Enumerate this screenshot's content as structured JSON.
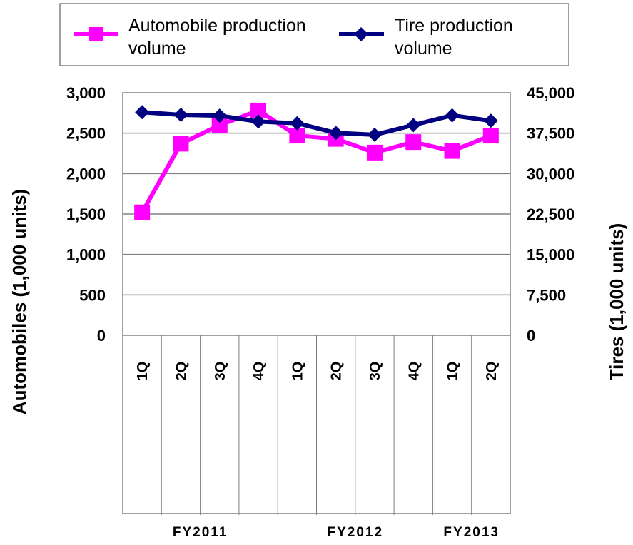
{
  "chart_data": {
    "type": "line",
    "categories": [
      "1Q",
      "2Q",
      "3Q",
      "4Q",
      "1Q",
      "2Q",
      "3Q",
      "4Q",
      "1Q",
      "2Q"
    ],
    "category_groups": [
      {
        "label": "FY2011",
        "count": 4
      },
      {
        "label": "FY2012",
        "count": 4
      },
      {
        "label": "FY2013",
        "count": 2
      }
    ],
    "series": [
      {
        "name": "Automobile production volume",
        "axis": "left",
        "color": "#ff00ff",
        "marker": "square",
        "values": [
          1520,
          2370,
          2600,
          2780,
          2470,
          2430,
          2260,
          2390,
          2280,
          2470
        ]
      },
      {
        "name": "Tire production volume",
        "axis": "right",
        "color": "#000080",
        "marker": "diamond",
        "values": [
          41400,
          40900,
          40750,
          39650,
          39350,
          37550,
          37200,
          39000,
          40800,
          39800
        ]
      }
    ],
    "ylabel": "Automobiles (1,000 units)",
    "y2label": "Tires (1,000 units)",
    "ylim": [
      0,
      3000
    ],
    "y2lim": [
      0,
      45000
    ],
    "yticks": [
      "0",
      "500",
      "1,000",
      "1,500",
      "2,000",
      "2,500",
      "3,000"
    ],
    "y2ticks": [
      "0",
      "7,500",
      "15,000",
      "22,500",
      "30,000",
      "37,500",
      "45,000"
    ],
    "grid": true,
    "legend_position": "top"
  }
}
